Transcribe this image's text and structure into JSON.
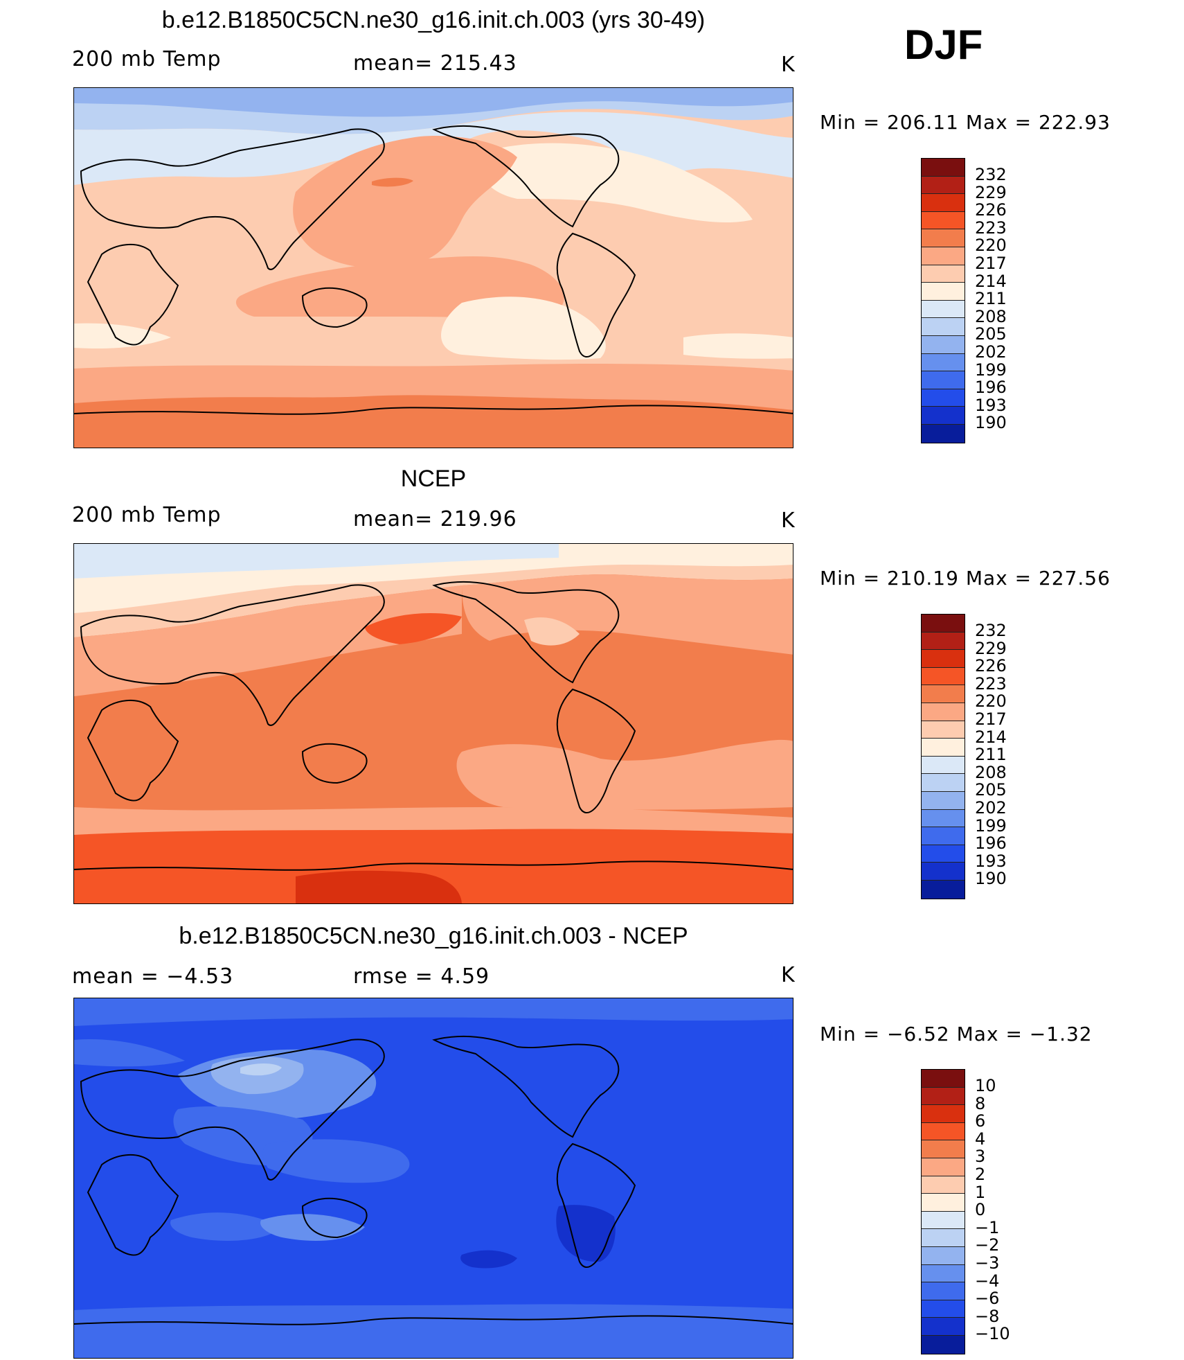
{
  "season": "DJF",
  "colors": {
    "temp_scale": [
      "#7a0f0f",
      "#b22016",
      "#d9300f",
      "#f55526",
      "#f27d4c",
      "#fba884",
      "#fdccb0",
      "#fff0de",
      "#dbe8f7",
      "#bcd2f3",
      "#93b3ef",
      "#6690ee",
      "#3f6bed",
      "#234dea",
      "#1431cc",
      "#081d9b"
    ],
    "diff_scale": [
      "#7a0f0f",
      "#b22016",
      "#d9300f",
      "#f55526",
      "#f27d4c",
      "#fba884",
      "#fdccb0",
      "#fff0de",
      "#dbe8f7",
      "#bcd2f3",
      "#93b3ef",
      "#6690ee",
      "#3f6bed",
      "#234dea",
      "#1431cc",
      "#081d9b"
    ]
  },
  "panels": [
    {
      "title": "b.e12.B1850C5CN.ne30_g16.init.ch.003 (yrs 30-49)",
      "left_label": "200 mb Temp",
      "center_label": "mean=  215.43",
      "units": "K",
      "minmax": "Min  =  206.11  Max  =  222.93",
      "colorbar_labels": [
        "232",
        "229",
        "226",
        "223",
        "220",
        "217",
        "214",
        "211",
        "208",
        "205",
        "202",
        "199",
        "196",
        "193",
        "190"
      ],
      "colorbar_key": "temp_scale",
      "background_band": "#fdccb0",
      "regions": [
        {
          "fill": "#bcd2f3"
        },
        {
          "fill": "#dbe8f7"
        },
        {
          "fill": "#fff0de"
        },
        {
          "fill": "#fba884"
        },
        {
          "fill": "#f27d4c"
        },
        {
          "fill": "#fba884"
        }
      ]
    },
    {
      "title": "NCEP",
      "left_label": "200 mb Temp",
      "center_label": "mean=  219.96",
      "units": "K",
      "minmax": "Min  =  210.19  Max  =  227.56",
      "colorbar_labels": [
        "232",
        "229",
        "226",
        "223",
        "220",
        "217",
        "214",
        "211",
        "208",
        "205",
        "202",
        "199",
        "196",
        "193",
        "190"
      ],
      "colorbar_key": "temp_scale",
      "background_band": "#f27d4c"
    },
    {
      "title": "b.e12.B1850C5CN.ne30_g16.init.ch.003 - NCEP",
      "left_label": "mean  =    −4.53",
      "center_label": "rmse  =     4.59",
      "units": "K",
      "minmax": "Min  =    −6.52  Max  =    −1.32",
      "colorbar_labels": [
        "10",
        "8",
        "6",
        "4",
        "3",
        "2",
        "1",
        "0",
        "−1",
        "−2",
        "−3",
        "−4",
        "−6",
        "−8",
        "−10"
      ],
      "colorbar_key": "diff_scale",
      "background_band": "#3f6bed"
    }
  ]
}
